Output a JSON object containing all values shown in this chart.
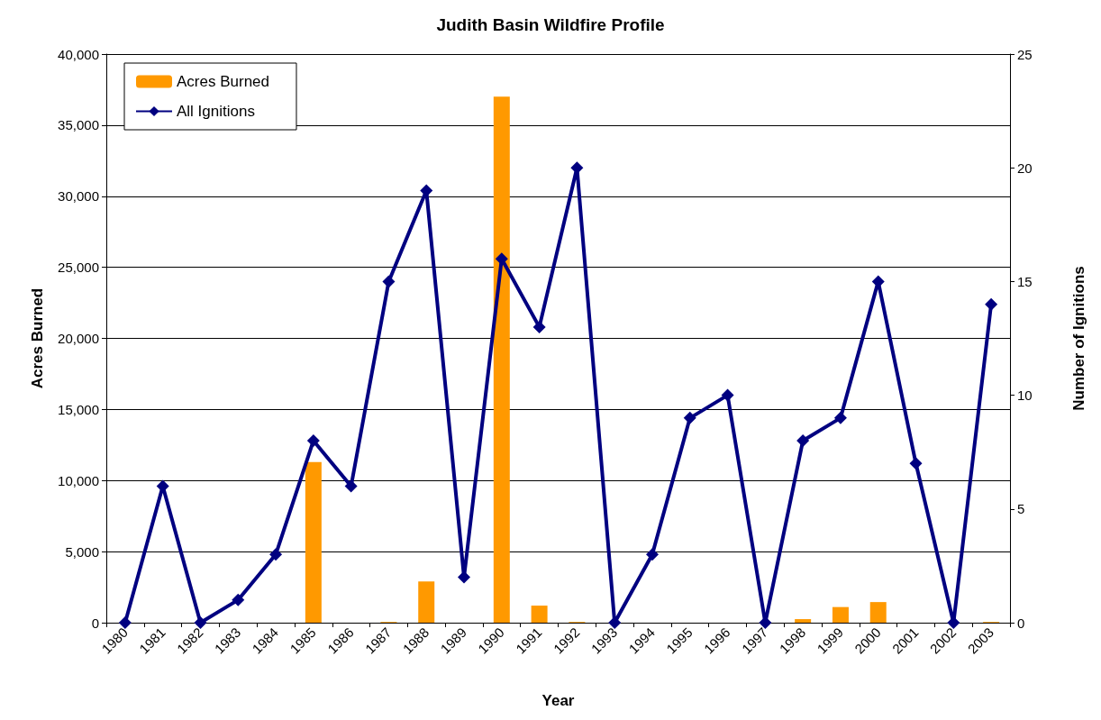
{
  "chart_data": {
    "type": "bar",
    "title": "Judith Basin Wildfire Profile",
    "xlabel": "Year",
    "ylabel": "Acres Burned",
    "y2label": "Number of Ignitions",
    "categories": [
      "1980",
      "1981",
      "1982",
      "1983",
      "1984",
      "1985",
      "1986",
      "1987",
      "1988",
      "1989",
      "1990",
      "1991",
      "1992",
      "1993",
      "1994",
      "1995",
      "1996",
      "1997",
      "1998",
      "1999",
      "2000",
      "2001",
      "2002",
      "2003"
    ],
    "series": [
      {
        "name": "Acres Burned",
        "color": "#ff9900",
        "values": [
          null,
          null,
          null,
          null,
          null,
          11300,
          null,
          50,
          2900,
          null,
          37000,
          1200,
          50,
          null,
          null,
          null,
          null,
          null,
          250,
          1100,
          1450,
          null,
          null,
          50
        ]
      },
      {
        "name": "All Ignitions",
        "type": "line",
        "axis": "y2",
        "color": "#000080",
        "marker": "diamond",
        "values": [
          0,
          6,
          0,
          1,
          3,
          8,
          6,
          15,
          19,
          2,
          16,
          13,
          20,
          0,
          3,
          9,
          10,
          0,
          8,
          9,
          15,
          7,
          0,
          14
        ]
      }
    ],
    "ylim": [
      0,
      40000
    ],
    "yticks": [
      {
        "value": 0,
        "label": "0"
      },
      {
        "value": 5000,
        "label": "5,000"
      },
      {
        "value": 10000,
        "label": "10,000"
      },
      {
        "value": 15000,
        "label": "15,000"
      },
      {
        "value": 20000,
        "label": "20,000"
      },
      {
        "value": 25000,
        "label": "25,000"
      },
      {
        "value": 30000,
        "label": "30,000"
      },
      {
        "value": 35000,
        "label": "35,000"
      },
      {
        "value": 40000,
        "label": "40,000"
      }
    ],
    "y2lim": [
      0,
      25
    ],
    "y2ticks": [
      0,
      5,
      10,
      15,
      20,
      25
    ],
    "grid": "y",
    "legend": "top left"
  }
}
